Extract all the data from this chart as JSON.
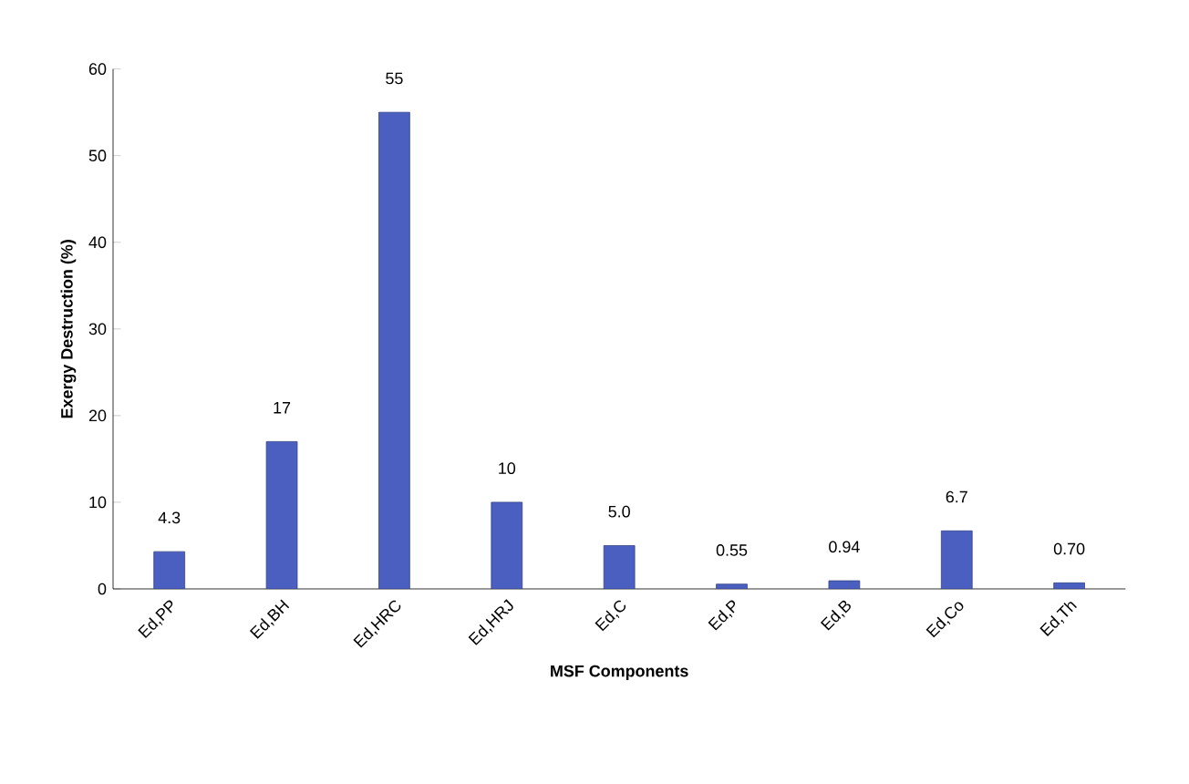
{
  "chart_data": {
    "type": "bar",
    "xlabel": "MSF Components",
    "ylabel": "Exergy Destruction (%)",
    "categories": [
      "Ed,PP",
      "Ed,BH",
      "Ed,HRC",
      "Ed,HRJ",
      "Ed,C",
      "Ed,P",
      "Ed,B",
      "Ed,Co",
      "Ed,Th"
    ],
    "values": [
      4.3,
      17,
      55,
      10,
      5.0,
      0.55,
      0.94,
      6.7,
      0.7
    ],
    "value_labels": [
      "4.3",
      "17",
      "55",
      "10",
      "5.0",
      "0.55",
      "0.94",
      "6.7",
      "0.70"
    ],
    "color": "#4a5fbf",
    "ylim": [
      0,
      60
    ],
    "yticks": [
      0,
      10,
      20,
      30,
      40,
      50,
      60
    ]
  }
}
